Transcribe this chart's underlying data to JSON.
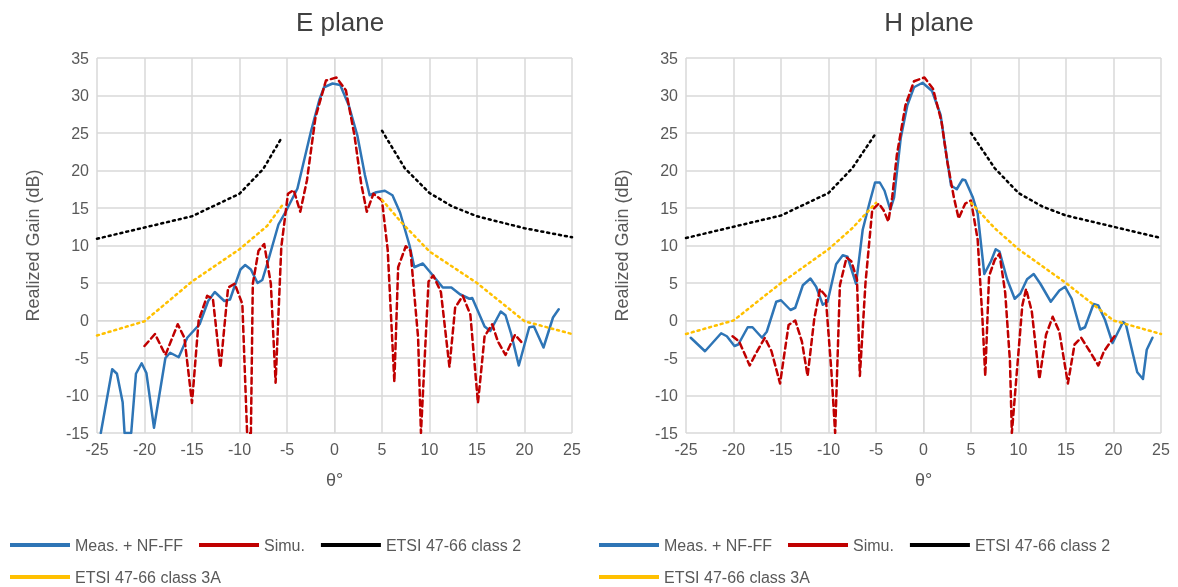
{
  "chart_data": [
    {
      "type": "line",
      "title": "E plane",
      "xlabel": "θ°",
      "ylabel": "Realized Gain (dB)",
      "xlim": [
        -25,
        25
      ],
      "xticks": [
        -25,
        -20,
        -15,
        -10,
        -5,
        0,
        5,
        10,
        15,
        20,
        25
      ],
      "ylim": [
        -15,
        35
      ],
      "yticks": [
        -15,
        -10,
        -5,
        0,
        5,
        10,
        15,
        20,
        25,
        30,
        35
      ],
      "grid": true,
      "legend": "bottom",
      "marker": "none",
      "series": [
        {
          "name": "Meas. + NF-FF",
          "color": "#2e75b6",
          "line_style": "solid",
          "x": [
            -24.6,
            -23.4,
            -22.9,
            -22.3,
            -22.1,
            -21.4,
            -20.9,
            -20.3,
            -19.8,
            -19,
            -17.8,
            -17.3,
            -16.4,
            -15.5,
            -14.2,
            -13.3,
            -12.6,
            -11.6,
            -11,
            -9.9,
            -9.4,
            -8.8,
            -8.1,
            -7.6,
            -7,
            -5.9,
            -5.1,
            -3.9,
            -2.5,
            -1.6,
            -1.1,
            -0.2,
            0.6,
            1.5,
            2.4,
            3.2,
            3.7,
            4.4,
            5.3,
            6.1,
            6.9,
            7.9,
            8.4,
            9.3,
            10.1,
            11.4,
            12.3,
            13.2,
            14.2,
            14.5,
            15.8,
            16.4,
            17.5,
            18,
            18.6,
            19.4,
            20.5,
            21,
            22,
            23,
            23.6
          ],
          "values": [
            -15,
            -6.5,
            -7.1,
            -10.9,
            -15,
            -15,
            -7.1,
            -5.7,
            -7,
            -14.3,
            -5,
            -4.3,
            -4.9,
            -2.3,
            -0.5,
            2.6,
            3.8,
            2.6,
            2.8,
            6.8,
            7.4,
            6.8,
            5,
            5.4,
            7.9,
            12.8,
            14.6,
            17.6,
            25.1,
            29.4,
            31.1,
            31.6,
            31.4,
            28.7,
            24.7,
            19.4,
            16.7,
            17.1,
            17.3,
            16.7,
            14.4,
            10,
            7.1,
            7.6,
            6.4,
            4.4,
            4.4,
            3.5,
            2.9,
            3,
            -0.8,
            -1.4,
            1.2,
            0.7,
            -1.8,
            -6,
            -0.9,
            -0.8,
            -3.6,
            0.4,
            1.5
          ]
        },
        {
          "name": "Simu.",
          "color": "#c00000",
          "line_style": "dashed",
          "x": [
            -20,
            -18.9,
            -17.8,
            -16.5,
            -15.8,
            -15,
            -14.3,
            -13.4,
            -12.8,
            -12,
            -11.2,
            -10.5,
            -9.7,
            -9.2,
            -8.8,
            -8.6,
            -8,
            -7.4,
            -6.7,
            -6.2,
            -5.6,
            -4.9,
            -4.3,
            -3.6,
            -2.9,
            -2,
            -0.9,
            0.2,
            1.2,
            2.1,
            2.8,
            3.4,
            4.1,
            5,
            5.6,
            6.3,
            6.7,
            7.5,
            8,
            8.8,
            9.1,
            9.9,
            10.4,
            11.2,
            12.1,
            12.7,
            13.5,
            14.3,
            15.1,
            15.8,
            16.6,
            17.2,
            18,
            19,
            19.9
          ],
          "values": [
            -3.4,
            -1.8,
            -4.6,
            -0.5,
            -2.3,
            -11,
            0,
            3.3,
            2.9,
            -6.3,
            4.4,
            4.9,
            2.2,
            -15,
            -15,
            4.9,
            9.3,
            10.2,
            4.9,
            -8.3,
            9.8,
            16.9,
            17.4,
            14.5,
            18.7,
            27.1,
            32,
            32.4,
            30.7,
            24.7,
            18.3,
            14.5,
            16.9,
            16,
            9.4,
            -8.2,
            7.1,
            9.9,
            9.3,
            -2.3,
            -15,
            5.2,
            6,
            3.8,
            -6.2,
            1.7,
            3.3,
            0.8,
            -11,
            -2.1,
            -0.5,
            -2.8,
            -4.6,
            -1.9,
            -3.2
          ]
        },
        {
          "name": "ETSI 47-66 class 2",
          "color": "#000000",
          "line_style": "dotted",
          "x": [
            -25,
            -20,
            -15,
            -10,
            -7.5,
            -5.5,
            0,
            5,
            7.4,
            10,
            12.4,
            15,
            20,
            25
          ],
          "values": [
            10.9,
            12.4,
            13.9,
            16.9,
            20.2,
            24.5,
            null,
            25.3,
            20.3,
            17,
            15.2,
            13.9,
            12.3,
            11.1
          ]
        },
        {
          "name": "ETSI 47-66 class 3A",
          "color": "#ffc000",
          "line_style": "dotted",
          "x": [
            -25,
            -20,
            -15,
            -10,
            -7.1,
            -5.3,
            0,
            5,
            7.1,
            10,
            15,
            20,
            25
          ],
          "values": [
            -2,
            -0.1,
            5.2,
            9.5,
            12.6,
            15.7,
            null,
            16.1,
            13,
            9.2,
            5,
            -0.1,
            -1.8
          ]
        }
      ]
    },
    {
      "type": "line",
      "title": "H plane",
      "xlabel": "θ°",
      "ylabel": "Realized Gain (dB)",
      "xlim": [
        -25,
        25
      ],
      "xticks": [
        -25,
        -20,
        -15,
        -10,
        -5,
        0,
        5,
        10,
        15,
        20,
        25
      ],
      "ylim": [
        -15,
        35
      ],
      "yticks": [
        -15,
        -10,
        -5,
        0,
        5,
        10,
        15,
        20,
        25,
        30,
        35
      ],
      "grid": true,
      "legend": "bottom",
      "marker": "none",
      "series": [
        {
          "name": "Meas. + NF-FF",
          "color": "#2e75b6",
          "line_style": "solid",
          "x": [
            -24.5,
            -23,
            -21.3,
            -20.7,
            -19.9,
            -19.5,
            -18.5,
            -18,
            -17,
            -16.5,
            -15.5,
            -15,
            -14,
            -13.5,
            -12.7,
            -11.9,
            -11.3,
            -10.6,
            -10.1,
            -9.2,
            -8.5,
            -8,
            -7.1,
            -6.4,
            -5.7,
            -5.1,
            -4.6,
            -4.1,
            -3.5,
            -3.1,
            -2.4,
            -1.7,
            -1,
            -0.1,
            0.9,
            1.8,
            2.3,
            2.9,
            3.5,
            4.1,
            4.4,
            5.2,
            5.7,
            6.4,
            7.1,
            7.6,
            8,
            8.8,
            9.6,
            10.2,
            10.9,
            11.6,
            12.3,
            13.4,
            14.3,
            14.9,
            15.6,
            16.5,
            17,
            17.9,
            18.4,
            19.1,
            19.9,
            21,
            21.3,
            22.5,
            23.1,
            23.5,
            24.1
          ],
          "values": [
            -2.3,
            -4.1,
            -1.7,
            -2.1,
            -3.4,
            -3.2,
            -0.9,
            -0.9,
            -2.3,
            -1.5,
            2.5,
            2.7,
            1.4,
            1.7,
            4.7,
            5.6,
            4.5,
            2.1,
            2.5,
            7.5,
            8.7,
            8.5,
            4.9,
            12.1,
            15.6,
            18.4,
            18.4,
            17.3,
            14.8,
            16.4,
            24.3,
            28.7,
            31.1,
            31.7,
            30.6,
            27.4,
            23,
            18,
            17.5,
            18.8,
            18.7,
            16.4,
            14.3,
            6.2,
            7.9,
            9.5,
            9.2,
            5.5,
            2.9,
            3.6,
            5.5,
            6.2,
            4.9,
            2.5,
            4,
            4.5,
            2.9,
            -1.2,
            -0.9,
            2.2,
            2,
            0.1,
            -3,
            -0.2,
            -0.5,
            -6.9,
            -7.8,
            -3.9,
            -2.3
          ]
        },
        {
          "name": "Simu.",
          "color": "#c00000",
          "line_style": "dashed",
          "x": [
            -20.1,
            -19.4,
            -18.3,
            -17.6,
            -16.7,
            -16,
            -15.1,
            -14.2,
            -13.5,
            -12.8,
            -12.2,
            -11.5,
            -10.9,
            -10.3,
            -9.7,
            -9.3,
            -8.8,
            -8.1,
            -7.6,
            -7,
            -6.7,
            -6.1,
            -5.4,
            -4.7,
            -4.2,
            -3.7,
            -3.3,
            -2.8,
            -1.9,
            -1,
            0.1,
            1,
            1.9,
            2.5,
            3.2,
            3.7,
            4.4,
            5,
            5.7,
            6.2,
            6.5,
            6.9,
            7.5,
            8,
            8.6,
            9.1,
            9.3,
            10.4,
            10.8,
            11.4,
            12.2,
            12.9,
            13.6,
            14.3,
            15.2,
            15.9,
            16.6,
            17.5,
            18.4,
            19,
            20.1
          ],
          "values": [
            -2.1,
            -2.8,
            -6,
            -4.3,
            -2.3,
            -4.1,
            -8.4,
            -0.6,
            0,
            -2.8,
            -7.4,
            0.2,
            4.2,
            3.3,
            -6.7,
            -15,
            4.7,
            8.4,
            7.9,
            5.5,
            -7.4,
            5.1,
            14.7,
            15.6,
            14.7,
            13.2,
            16.4,
            22.1,
            28.7,
            31.9,
            32.4,
            30.9,
            26.5,
            21.2,
            16.4,
            13.6,
            15.6,
            16,
            10.8,
            0.3,
            -7.4,
            5.9,
            8.1,
            8.9,
            3.7,
            -5.4,
            -15,
            2,
            4.2,
            1.2,
            -7.8,
            -1.9,
            0.5,
            -1.5,
            -8.4,
            -3.2,
            -2.3,
            -4.1,
            -6,
            -4.1,
            -2.1
          ]
        },
        {
          "name": "ETSI 47-66 class 2",
          "color": "#000000",
          "line_style": "dotted",
          "x": [
            -25,
            -20,
            -15,
            -10,
            -7.5,
            -5,
            0,
            5,
            7.5,
            10,
            12.5,
            15,
            20,
            25
          ],
          "values": [
            11,
            12.5,
            14,
            17,
            20.3,
            25,
            null,
            25,
            20.3,
            17,
            15.2,
            14,
            12.5,
            11
          ]
        },
        {
          "name": "ETSI 47-66 class 3A",
          "color": "#ffc000",
          "line_style": "dotted",
          "x": [
            -25,
            -20,
            -15,
            -10,
            -7.5,
            -5,
            0,
            5,
            7.5,
            10,
            15,
            20,
            25
          ],
          "values": [
            -1.8,
            0,
            5,
            9.5,
            12.3,
            15.7,
            null,
            15.7,
            12.3,
            9.5,
            5,
            0,
            -1.8
          ]
        }
      ]
    }
  ]
}
